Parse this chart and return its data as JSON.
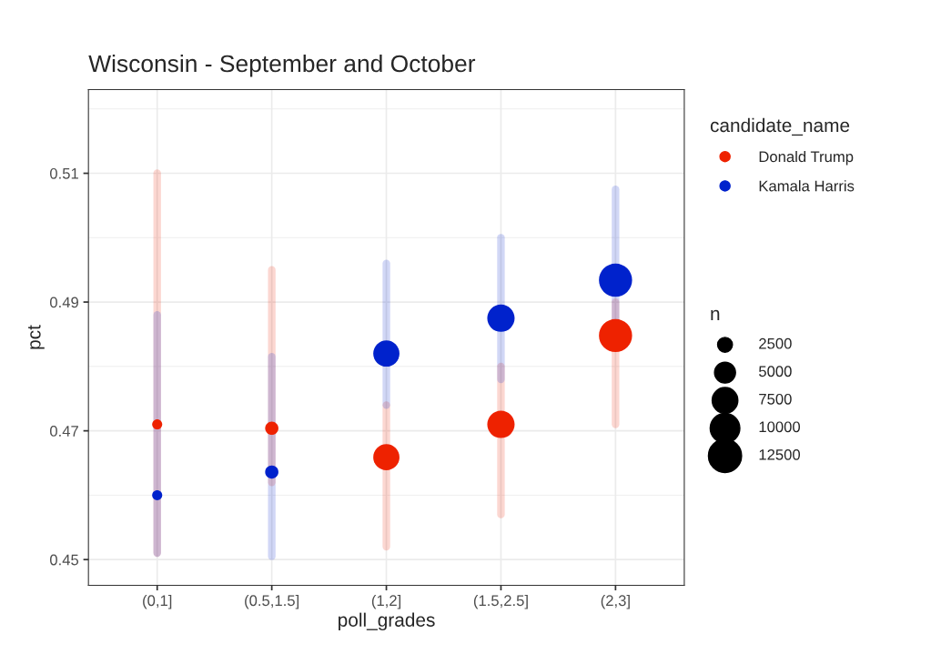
{
  "chart_data": {
    "type": "bubble",
    "title": "Wisconsin - September and October",
    "xlabel": "poll_grades",
    "ylabel": "pct",
    "categories": [
      "(0,1]",
      "(0.5,1.5]",
      "(1,2]",
      "(1.5,2.5]",
      "(2,3]"
    ],
    "series": [
      {
        "name": "Donald Trump",
        "color": "#ee2200",
        "values": [
          0.471,
          0.4704,
          0.4659,
          0.471,
          0.4848
        ],
        "sizes": [
          1150,
          2000,
          7800,
          8500,
          12500
        ],
        "errors": [
          [
            0.451,
            0.51
          ],
          [
            0.462,
            0.495
          ],
          [
            0.452,
            0.474
          ],
          [
            0.457,
            0.48
          ],
          [
            0.471,
            0.49
          ]
        ]
      },
      {
        "name": "Kamala Harris",
        "color": "#0022cc",
        "values": [
          0.46,
          0.4636,
          0.482,
          0.4875,
          0.4934
        ],
        "sizes": [
          1150,
          2000,
          7800,
          8500,
          12500
        ],
        "errors": [
          [
            0.451,
            0.488
          ],
          [
            0.4505,
            0.4815
          ],
          [
            0.474,
            0.496
          ],
          [
            0.478,
            0.5
          ],
          [
            0.487,
            0.5075
          ]
        ]
      }
    ],
    "legend_title": [
      "candidate_name",
      "n"
    ],
    "size_legend": [
      2500,
      5000,
      7500,
      10000,
      12500
    ],
    "ylim": [
      0.446,
      0.523
    ],
    "yticks": [
      0.45,
      0.47,
      0.49,
      0.51
    ],
    "grid": true,
    "legend": "right"
  }
}
